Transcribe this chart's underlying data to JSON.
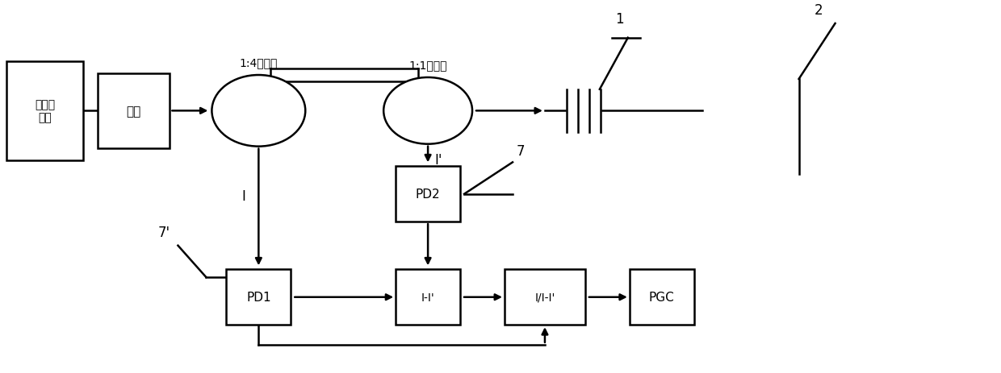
{
  "bg": "#ffffff",
  "lc": "#000000",
  "lw": 1.8,
  "figsize": [
    12.4,
    4.64
  ],
  "dpi": 100,
  "labels": {
    "signal_gen": "信号发\n生器",
    "light_src": "光源",
    "coupler1": "1:4耦合器",
    "coupler2": "1:1耦合器",
    "PD2": "PD2",
    "PD1": "PD1",
    "subtract": "I-I'",
    "divide": "I/I-I'",
    "PGC": "PGC",
    "port1": "1",
    "port2": "2",
    "I": "I",
    "Iprime": "I'",
    "seven": "7",
    "sevenprime": "7'"
  }
}
